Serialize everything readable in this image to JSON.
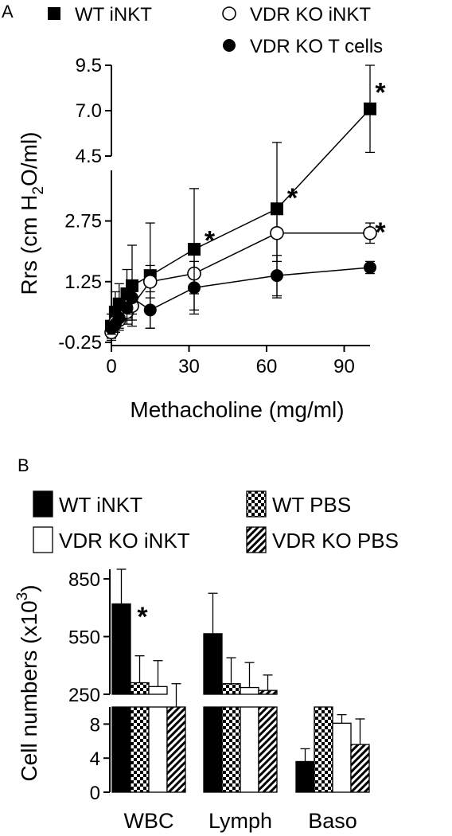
{
  "panels": {
    "a": "A",
    "b": "B"
  },
  "chart_data": [
    {
      "type": "line",
      "panel": "A",
      "xlabel": "Methacholine (mg/ml)",
      "ylabel": "Rrs (cm H2O/ml)",
      "ylabel_parts": {
        "pre": "Rrs (cm H",
        "sub": "2",
        "post": "O/ml)"
      },
      "xlim": [
        0,
        100
      ],
      "x_ticks": [
        "0",
        "30",
        "60",
        "90"
      ],
      "y_axis_break": true,
      "ylim_lower": [
        -0.25,
        4.0
      ],
      "ylim_upper": [
        4.5,
        9.5
      ],
      "y_ticks_lower": [
        "-0.25",
        "1.25",
        "2.75"
      ],
      "y_ticks_upper": [
        "4.5",
        "7.0",
        "9.5"
      ],
      "x": [
        0,
        1.5,
        3,
        6,
        8,
        15,
        32,
        64,
        100
      ],
      "series": [
        {
          "name": "WT iNKT",
          "marker": "square-filled",
          "values": [
            0.15,
            0.5,
            0.7,
            0.95,
            1.15,
            1.4,
            2.05,
            3.05,
            7.1
          ],
          "error": [
            0.3,
            0.5,
            0.5,
            0.6,
            1.0,
            1.3,
            1.5,
            2.2,
            2.4
          ]
        },
        {
          "name": "VDR KO iNKT",
          "marker": "circle-open",
          "values": [
            0.0,
            0.25,
            0.3,
            0.5,
            0.65,
            1.25,
            1.45,
            2.45,
            2.45
          ],
          "error": [
            0.2,
            0.25,
            0.25,
            0.3,
            0.35,
            0.4,
            0.5,
            0.7,
            0.25
          ]
        },
        {
          "name": "VDR KO T cells",
          "marker": "circle-filled",
          "values": [
            0.1,
            0.2,
            0.35,
            0.6,
            0.85,
            0.55,
            1.1,
            1.4,
            1.6
          ],
          "error": [
            0.15,
            0.2,
            0.25,
            0.3,
            0.4,
            0.45,
            0.65,
            0.5,
            0.15
          ]
        }
      ],
      "annotations": [
        {
          "text": "*",
          "x": 38,
          "y": 2.4
        },
        {
          "text": "*",
          "x": 70,
          "y": 3.45
        },
        {
          "text": "*",
          "x": 104,
          "y": 8.3
        },
        {
          "text": "*",
          "x": 104,
          "y": 2.6
        }
      ],
      "legend": "top"
    },
    {
      "type": "bar",
      "panel": "B",
      "ylabel": "Cell numbers (x10^3)",
      "ylabel_parts": {
        "pre": "Cell numbers (x10",
        "sup": "3",
        "post": ")"
      },
      "categories": [
        "WBC",
        "Lymph",
        "Baso"
      ],
      "y_axis_break": true,
      "ylim_lower": [
        0,
        10
      ],
      "ylim_upper": [
        250,
        900
      ],
      "y_ticks_lower": [
        "0",
        "4",
        "8"
      ],
      "y_ticks_upper": [
        "250",
        "550",
        "850"
      ],
      "series": [
        {
          "name": "WT iNKT",
          "pattern": "solid-black",
          "values": [
            720,
            565,
            3.6
          ],
          "error": [
            180,
            210,
            1.5
          ]
        },
        {
          "name": "WT PBS",
          "pattern": "checkered",
          "values": [
            310,
            305,
            10
          ],
          "error": [
            140,
            135,
            0
          ]
        },
        {
          "name": "VDR KO iNKT",
          "pattern": "white",
          "values": [
            290,
            285,
            8.1
          ],
          "error": [
            135,
            130,
            1
          ]
        },
        {
          "name": "VDR KO PBS",
          "pattern": "diagonal-hatch",
          "values": [
            220,
            270,
            5.6
          ],
          "error": [
            85,
            80,
            3
          ]
        }
      ],
      "annotations": [
        {
          "text": "*",
          "category": "WBC",
          "y": 680
        }
      ],
      "legend": "top"
    }
  ],
  "colors": {
    "ink": "#000000",
    "paper": "#ffffff"
  }
}
